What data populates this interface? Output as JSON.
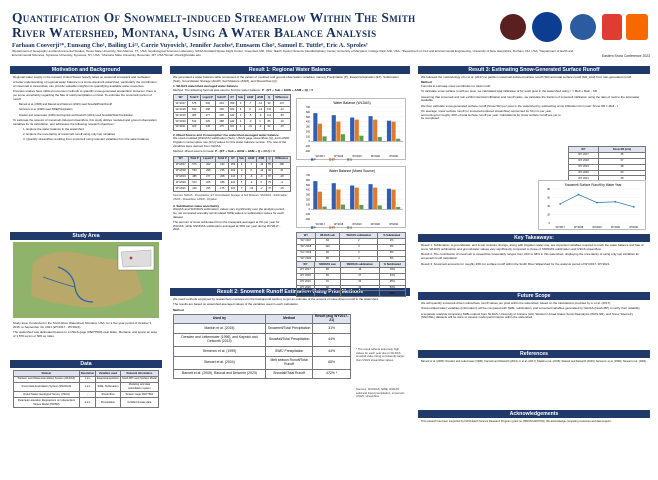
{
  "header": {
    "title": "Quantification Of Snowmelt-induced Streamflow Within The Smith River Watershed, Montana, Using A Water Balance Analysis",
    "authors": "Farhaan Cooverji¹*, Eunsang Cho¹, Bailing Li²³, Carrie Vuyovich², Jennifer Jacobs⁴, Eunsaem Cho⁵, Samuel E. Tuttle⁶, Eric A. Sproles⁷",
    "affiliations": "¹Department of Geography and Environmental Studies, Texas State University, San Marcos, TX, USA; ²Hydrological Sciences Laboratory, NASA Goddard Space Flight Center, Greenbelt, MD, USA; ³Earth System Science Interdisciplinary Center, University of Maryland, College Park, MD, USA; ⁴Department of Civil and Environmental Engineering, University of New Hampshire, Durham, NH, USA; ⁵Department of Earth and Environmental Sciences, Syracuse University, Syracuse, NY, USA; ⁷Montana State University, Bozeman, MT, USA  *Email: shw21@txstate.edu",
    "conference": "Eastern Snow Conference 2023"
  },
  "motivation": {
    "heading": "Motivation and Background",
    "bullets": [
      "Regional water supply in the western United States heavily relies on seasonal snowpack and meltwater.",
      "A better understanding of regional water balance in a snow-dominant watershed, particularly the contribution of snowmelt to streamflow, can provide valuable insights into quantifying available water resources.",
      "Previous studies have utilized numerous methods to quantify snow-generated streamflow. However, there is yet some uncertainty regarding the fate of solid precipitation on land. To estimate the snowmelt portion of runoff:",
      "Barnett et al. (2005) and Rasouli and Salomon (2023) used Snowfall/Total Runoff",
      "Semenov et al. (1999) used SWE/Precipitation",
      "Dreslen and Lettenmaier (1996) and Kapnick and Delworth (2013) used Snowfall/Total Precipitation",
      "To estimate the amount of snowmelt-induced streamflow, this study utilizes modeled and ground observation variables for its calculation, and addresses the following research objectives:",
      "1. Explore the water balance in the watershed",
      "2. Explore the uncertainty of snowmelt runoff using only two variables",
      "3. Quantify streamflow resulting from snowmelt using relevant variables from the water balance"
    ]
  },
  "study_area": {
    "heading": "Study Area",
    "bullets": [
      "Study area: Conducted in the Smith River Watershed, Montana, USA, for a five-year period of October 1, 2016, to September 30, 2021 (WY2017 - WY2021).",
      "The watershed was delineated based on a USGS gage (06077500) near Eden, Montana, and spans an area of 1,570 sq km or 606 sq miles."
    ]
  },
  "data": {
    "heading": "Data",
    "columns": [
      "Dataset",
      "Resolution",
      "Variables used",
      "Relevant Information"
    ],
    "rows": [
      [
        "Western Land Data Assimilation System (WLDAS)",
        "1 km",
        "Evapotranspiration",
        "Noah-MP Land Surface Model"
      ],
      [
        "Snow Data Assimilation System (SNODAS)",
        "1 km",
        "SWE, Sublimation",
        "Modeling and data assimilation system"
      ],
      [
        "United States Geological Survey (USGS)",
        "-",
        "Streamflow",
        "Stream Gage 06077500"
      ],
      [
        "Parameter-elevation Regressions on Independent Slopes Model (PRISM)",
        "4 km",
        "Precipitation",
        "Gridded climate data"
      ]
    ]
  },
  "result1": {
    "heading": "Result 1: Regional Water Balance",
    "intro": "We generated a water balance table composed of the values of modeled and ground observation variables, namely Precipitation (P), Evapotranspiration (ET), Sublimation (Sub), Groundwater Storage (ΔGW), Soil Moisture (ΔSM), and Streamflow (Q).",
    "sub1": "1. WLDAS watershed-averaged water balance",
    "method1": "Method: The following formula was used to find the water balance:",
    "formula1": "P - (ET + Sub + ΔGW + ΔSM + Q) = 0",
    "table_cols": [
      "WY",
      "Total P",
      "Liquid P",
      "Solid P",
      "ET",
      "Sub",
      "ΔGW",
      "ΔSM",
      "Q",
      "Difference"
    ],
    "table1": [
      [
        "WY2017",
        "575",
        "332",
        "243",
        "359",
        "3",
        "-7",
        "-16",
        "99",
        "137"
      ],
      [
        "WY2018",
        "533",
        "298",
        "235",
        "403",
        "4",
        "6",
        "-12",
        "144",
        "-12"
      ],
      [
        "WY2019",
        "485",
        "277",
        "208",
        "442",
        "3",
        "-5",
        "-9",
        "113",
        "-59"
      ],
      [
        "WY2020",
        "513",
        "325",
        "188",
        "442",
        "4",
        "-3",
        "0",
        "86",
        "-16"
      ],
      [
        "WY2021",
        "420",
        "245",
        "175",
        "401",
        "4",
        "-19",
        "-2",
        "52",
        "-16"
      ]
    ],
    "sub2": "2. Mixed Source and Consumptive Use watershed-averaged water balance",
    "bullet2": "We used modeled (WLDAS) sublimation (Sub), USGS gage streamflow (Q), and LANID irrigation consumptive use (ICU) values for this water balance version. The rest of the variables were derived from NLDAS.",
    "method2": "Method: Mixed source formula:",
    "formula2": "P - (ET + Sub + ΔGW + ΔSM + Q + ICU) = 0",
    "table2": [
      [
        "WY2017",
        "575",
        "332",
        "243",
        "359",
        "4",
        "-7",
        "-16",
        "55",
        "186"
      ],
      [
        "WY2018",
        "533",
        "298",
        "235",
        "403",
        "3",
        "6",
        "-12",
        "94",
        "43"
      ],
      [
        "WY2019",
        "485",
        "277",
        "208",
        "442",
        "4",
        "-5",
        "-9",
        "87",
        "-28"
      ],
      [
        "WY2020",
        "513",
        "325",
        "188",
        "442",
        "5",
        "-3",
        "0",
        "79",
        "-4"
      ],
      [
        "WY2021",
        "420",
        "245",
        "175",
        "401",
        "7",
        "-19",
        "-2",
        "47",
        "-15"
      ]
    ],
    "sources": "Sources: NLDAS - Precipitation, ET, Groundwater Storage, & Soil Moisture; SNODAS - Sublimation; USGS - Streamflow; LANID - Irrigation",
    "sub3": "3. Sublimation value uncertainty",
    "bullets3": [
      "WLDAS and SNODAS sublimation values vary significantly over the analysis period. So, we compared annually accumulated SWE values to sublimation values for each dataset.",
      "The amount of snow sublimated from the snowpack averaged at 3% per year for WLDAS, while SNODAS sublimation averaged at 39% per year during WY2017 - 2021."
    ],
    "sub_table_a_cols": [
      "WY",
      "WLDAS sub",
      "WLDAS sublimation",
      "% Sublimated"
    ],
    "sub_table_a": [
      [
        "WY 2017",
        "84",
        "2",
        "2%"
      ],
      [
        "WY 2018",
        "120",
        "4",
        "3%"
      ],
      [
        "WY 2019",
        "56",
        "3",
        "5%"
      ],
      [
        "WY 2020",
        "80",
        "4",
        "5%"
      ],
      [
        "WY 2021",
        "114",
        "4",
        "4%"
      ]
    ],
    "sub_table_b_cols": [
      "WY",
      "SNODAS swe",
      "SNODAS sublimation",
      "% Sublimated"
    ],
    "sub_table_b": [
      [
        "WY 2017",
        "83",
        "16",
        "19%"
      ],
      [
        "WY 2018",
        "83",
        "27",
        "33%"
      ],
      [
        "WY 2019",
        "91",
        "32",
        "35%"
      ],
      [
        "WY 2020",
        "62",
        "33",
        "53%"
      ],
      [
        "WY 2021",
        "77",
        "41",
        "53%"
      ]
    ]
  },
  "charts": {
    "chart_data": [
      {
        "type": "bar",
        "title": "Water Balance (WLDAS)",
        "categories": [
          "WY2017",
          "WY2018",
          "WY2019",
          "WY2020",
          "WY2021"
        ],
        "series": [
          {
            "name": "P",
            "values": [
              575,
              533,
              485,
              513,
              420
            ]
          },
          {
            "name": "ET",
            "values": [
              359,
              403,
              442,
              442,
              401
            ]
          },
          {
            "name": "Q",
            "values": [
              99,
              144,
              113,
              86,
              52
            ]
          }
        ],
        "ylim": [
          -200,
          700
        ]
      },
      {
        "type": "bar",
        "title": "Water Balance (Mixed Source)",
        "categories": [
          "WY2017",
          "WY2018",
          "WY2019",
          "WY2020",
          "WY2021"
        ],
        "series": [
          {
            "name": "P",
            "values": [
              575,
              533,
              485,
              513,
              420
            ]
          },
          {
            "name": "ET",
            "values": [
              359,
              403,
              442,
              442,
              401
            ]
          },
          {
            "name": "Q",
            "values": [
              55,
              94,
              87,
              79,
              47
            ]
          }
        ],
        "ylim": [
          -200,
          700
        ]
      },
      {
        "type": "line",
        "title": "Snowmelt Surface Runoff by Water Year",
        "categories": [
          "WY2017",
          "WY2018",
          "WY2019",
          "WY2020",
          "WY2021"
        ],
        "series": [
          {
            "name": "Snow SR",
            "values": [
              45,
              67,
              48,
              50,
              38
            ]
          }
        ],
        "ylim": [
          0,
          80
        ]
      }
    ]
  },
  "result2": {
    "heading": "Result 2: Snowmelt Runoff Estimation Using Prior Methods",
    "bullets": [
      "We used methods employed by researchers mentioned in the background section, to get an estimate of the amount of snow-driven runoff in the watershed.",
      "The results are based on watershed-averaged values of the variables used in each calculation."
    ],
    "method_label": "Method",
    "table_cols": [
      "Used by",
      "Method",
      "Result (avg WY2017-21)"
    ],
    "table": [
      [
        "Mankin et al. (2015)",
        "Snowmelt/Total Precipitation",
        "31%"
      ],
      [
        "Dresden and Lettenmaier (1996), and Kapnick and Delworth (2013)",
        "Snowfall/Total Precipitation",
        "44%"
      ],
      [
        "Semenov et al. (1999)",
        "SWE/ Precipitation",
        "44%"
      ],
      [
        "Stewart et al. (2004)",
        "Melt season Runoff/Total Runoff",
        "68%"
      ],
      [
        "Barnett et al. (2005), Rasouli and Delworth (2023)",
        "Snowfall/Total Runoff",
        "472% *"
      ]
    ],
    "note": "* The result reflects extremely high values for each year due to WLDAS snowfall value being consistently larger than USGS streamflow values",
    "sources": "Sources: SNODAS: SWE; WLDAS: solid and liquid precipitation, snowmelt; USGS: streamflow"
  },
  "result3": {
    "heading": "Result 3: Estimating Snow-Generated Surface Runoff",
    "intro": "We followed the methodology of Li et al. (2017) to partition snowmelt-induced surface runoff (SR) and total surface runoff (SR_total) from rain-generated runoff.",
    "method_label": "Method",
    "bullets": [
      "Formula to estimate snow contribution to total runoff:",
      "To calculate snow surface runoff per pixel, we calculated total infiltration of for each pixel in the watershed using: I = Melt + Rain - SR",
      "Assuming that snowmelt and rain exhibit identical infiltration and runoff ratios, we calculate the fraction of snowmelt infiltration using the ratio of melt to the total water available",
      "We then calculate snow-generated surface runoff (Snow SR) per pixel in the watershed by subtracting snow infiltration from melt: Snow SR = Melt - I",
      "On average, snow surface runoff (or snowmelt-induced streamflow) accounted for 50 mm per year, accounting for roughly 49% of total surface runoff per year. Calculations for snow surface runoff are yet to be completed."
    ],
    "table_cols": [
      "WY",
      "Snow SR (mm)"
    ],
    "table": [
      [
        "WY 2017",
        "45"
      ],
      [
        "WY 2018",
        "67"
      ],
      [
        "WY 2019",
        "48"
      ],
      [
        "WY 2020",
        "50"
      ],
      [
        "WY 2021",
        "38"
      ]
    ]
  },
  "takeaways": {
    "heading": "Key Takeaways:",
    "items": [
      "Result 1: Sublimation, Δ groundwater, and Δ soil moisture change, along with irrigation water use, are important variables required to track the water balance and fate of snow. WLDAS sublimation and groundwater values vary significantly compared to those of SNODAS sublimation and USGS streamflow.",
      "Result 2: The contribution of snowmelt to streamflow reasonably ranges from 31% to 68% in this watershed, displaying the uncertainty of using only two variables for snowmelt runoff calculation.",
      "Result 3: Snowmelt accounts for roughly 49% for surface runoff within the Smith River Watershed for the analysis period of WY2017- WY2021."
    ]
  },
  "future": {
    "heading": "Future Scope",
    "bullets": [
      "We will quantify snowmelt-driven subsurface runoff values per pixel within the watershed, based on the calculations provided by Li et al. (2017).",
      "Snow-related water variables (information) will be compared with SWE, sublimation, and snowmelt variables generated by NLDAS (Noah-MP) to verify their reliability.",
      "A separate analysis comparing SWE outputs from NLDAS, University of Arizona (UA), Western United States Snow Reanalysis (WUS-SR), and Snow Telemetry (SNOTEL) datasets will be done to assess model performance within the watershed."
    ]
  },
  "references": {
    "heading": "References",
    "text": "Barnett et al. (2005); Dresden and Lettenmaier (1996); Kapnick and Delworth (2013); Li et al. (2017); Mankin et al. (2015); Rasouli and Delworth (2023); Semenov et al. (1999); Stewart et al. (2004)."
  },
  "ack": {
    "heading": "Acknowledgements",
    "text": "This research has been supported by NASA Earth Science Research Program (grant no. 80NSSC22K0743). We acknowledge computing resources and data support."
  }
}
